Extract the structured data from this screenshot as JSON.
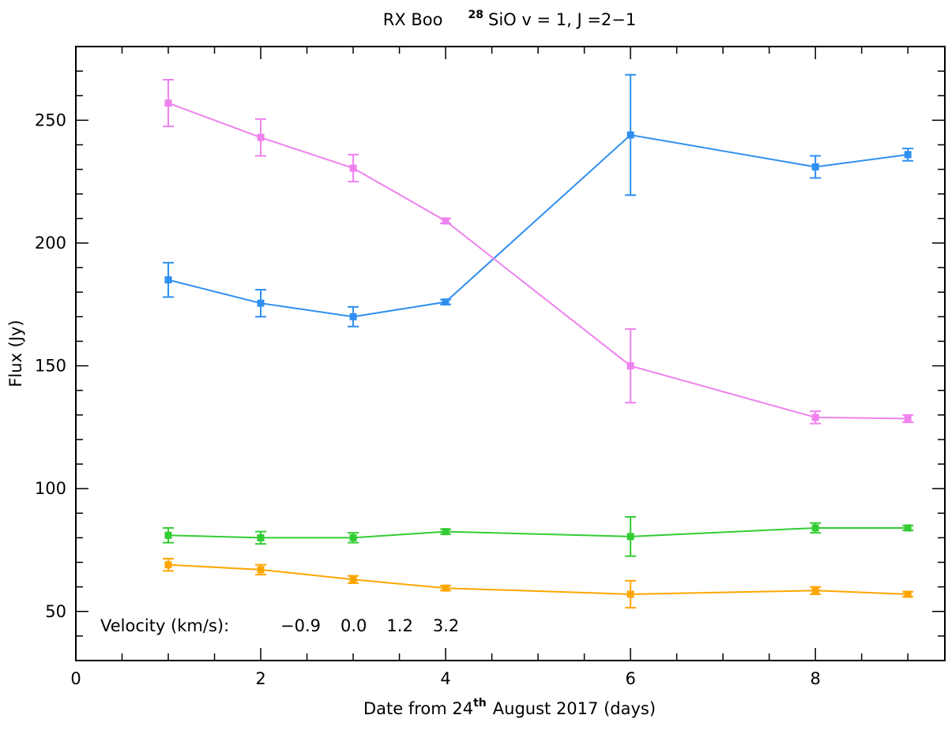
{
  "chart_data": {
    "type": "line",
    "title": {
      "prefix": "RX Boo",
      "isotope": "28",
      "suffix": "SiO v = 1, J =2−1"
    },
    "xlabel": {
      "prefix": "Date from 24",
      "superscript": "th",
      "suffix": "August 2017 (days)"
    },
    "ylabel": "Flux (Jy)",
    "xlim": [
      0,
      9.4
    ],
    "ylim": [
      30,
      280
    ],
    "x_ticks": [
      0,
      2,
      4,
      6,
      8
    ],
    "x_tick_labels": [
      "0",
      "2",
      "4",
      "6",
      "8"
    ],
    "x_minor_step": 0.5,
    "y_ticks": [
      50,
      100,
      150,
      200,
      250
    ],
    "y_tick_labels": [
      "50",
      "100",
      "150",
      "200",
      "250"
    ],
    "y_minor_step": 10,
    "legend": {
      "label": "Velocity (km/s):",
      "position": "bottom-left"
    },
    "series": [
      {
        "name": "−0.9",
        "color": "#2f8ff0",
        "x": [
          1,
          2,
          3,
          4,
          6,
          8,
          9
        ],
        "y": [
          185,
          175.5,
          170,
          176,
          244,
          231,
          236
        ],
        "err": [
          7,
          5.5,
          4,
          1,
          24.5,
          4.5,
          2.5
        ]
      },
      {
        "name": "0.0",
        "color": "#ee82ee",
        "x": [
          1,
          2,
          3,
          4,
          6,
          8,
          9
        ],
        "y": [
          257,
          243,
          230.5,
          209,
          150,
          129,
          128.5
        ],
        "err": [
          9.5,
          7.5,
          5.5,
          1,
          15,
          2.5,
          1.5
        ]
      },
      {
        "name": "1.2",
        "color": "#33cc33",
        "x": [
          1,
          2,
          3,
          4,
          6,
          8,
          9
        ],
        "y": [
          81,
          80,
          80,
          82.5,
          80.5,
          84,
          84
        ],
        "err": [
          3,
          2.5,
          2,
          1,
          8,
          2,
          1
        ]
      },
      {
        "name": "3.2",
        "color": "#ffa500",
        "x": [
          1,
          2,
          3,
          4,
          6,
          8,
          9
        ],
        "y": [
          69,
          67,
          63,
          59.5,
          57,
          58.5,
          57
        ],
        "err": [
          2.5,
          2,
          1.5,
          1,
          5.5,
          1.5,
          1
        ]
      }
    ]
  }
}
